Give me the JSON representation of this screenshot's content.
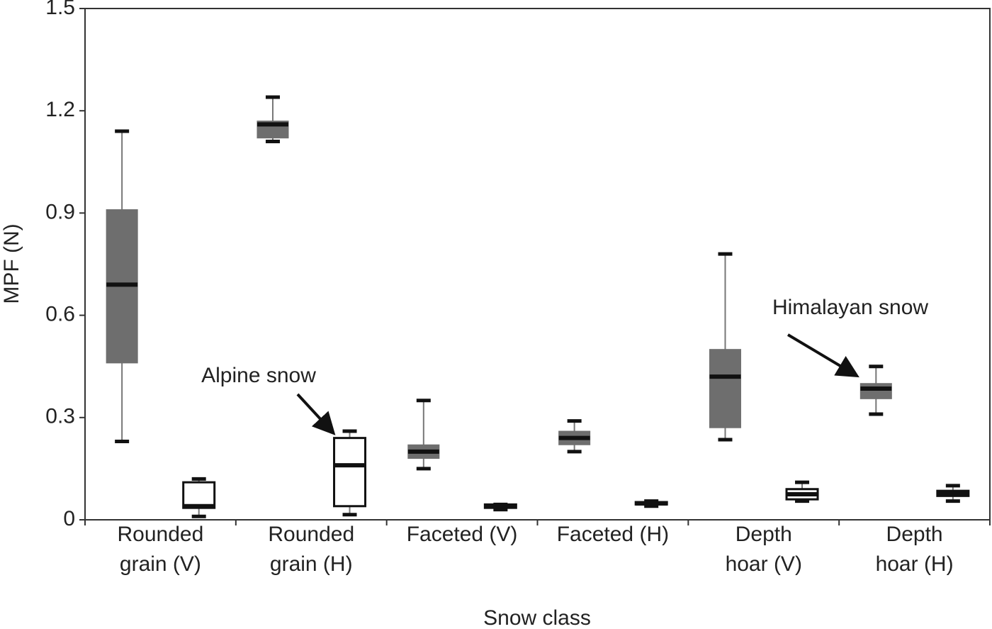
{
  "chart_data": {
    "type": "box",
    "x_label": "Snow class",
    "y_label": "MPF (N)",
    "categories": [
      "Rounded grain (V)",
      "Rounded grain (H)",
      "Faceted (V)",
      "Faceted (H)",
      "Depth hoar (V)",
      "Depth hoar (H)"
    ],
    "series": [
      {
        "name": "Himalayan snow",
        "color": "#6e6e6e",
        "values": [
          {
            "min": 0.23,
            "q1": 0.46,
            "median": 0.69,
            "q3": 0.91,
            "max": 1.14
          },
          {
            "min": 1.11,
            "q1": 1.12,
            "median": 1.16,
            "q3": 1.17,
            "max": 1.24
          },
          {
            "min": 0.15,
            "q1": 0.18,
            "median": 0.2,
            "q3": 0.22,
            "max": 0.35
          },
          {
            "min": 0.2,
            "q1": 0.22,
            "median": 0.24,
            "q3": 0.26,
            "max": 0.29
          },
          {
            "min": 0.235,
            "q1": 0.27,
            "median": 0.42,
            "q3": 0.5,
            "max": 0.78
          },
          {
            "min": 0.31,
            "q1": 0.355,
            "median": 0.385,
            "q3": 0.4,
            "max": 0.45
          }
        ]
      },
      {
        "name": "Alpine snow",
        "color": "#ffffff",
        "values": [
          {
            "min": 0.01,
            "q1": 0.035,
            "median": 0.04,
            "q3": 0.11,
            "max": 0.12
          },
          {
            "min": 0.015,
            "q1": 0.04,
            "median": 0.16,
            "q3": 0.24,
            "max": 0.26
          },
          {
            "min": 0.03,
            "q1": 0.035,
            "median": 0.04,
            "q3": 0.045,
            "max": 0.045
          },
          {
            "min": 0.04,
            "q1": 0.045,
            "median": 0.048,
            "q3": 0.052,
            "max": 0.055
          },
          {
            "min": 0.055,
            "q1": 0.06,
            "median": 0.075,
            "q3": 0.09,
            "max": 0.11
          },
          {
            "min": 0.055,
            "q1": 0.07,
            "median": 0.078,
            "q3": 0.085,
            "max": 0.1
          }
        ]
      }
    ],
    "ylim": [
      0,
      1.5
    ],
    "yticks": [
      0,
      0.3,
      0.6,
      0.9,
      1.2,
      1.5
    ],
    "grid": false
  }
}
